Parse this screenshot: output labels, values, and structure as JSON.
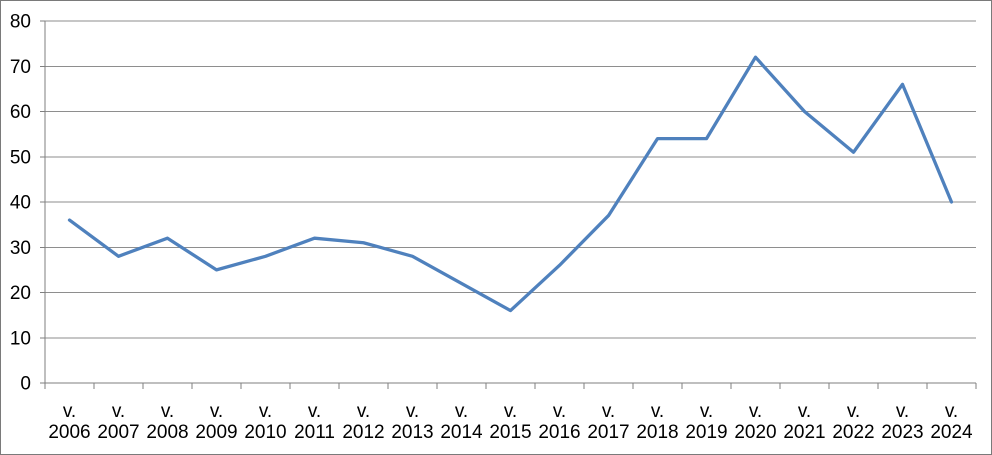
{
  "chart_data": {
    "type": "line",
    "title": "",
    "subtitle": "",
    "xlabel": "",
    "ylabel": "",
    "legend": false,
    "grid": true,
    "category_prefix": "v.",
    "categories": [
      "2006",
      "2007",
      "2008",
      "2009",
      "2010",
      "2011",
      "2012",
      "2013",
      "2014",
      "2015",
      "2016",
      "2017",
      "2018",
      "2019",
      "2020",
      "2021",
      "2022",
      "2023",
      "2024"
    ],
    "series": [
      {
        "name": "",
        "values": [
          36,
          28,
          32,
          25,
          28,
          32,
          31,
          28,
          22,
          16,
          26,
          37,
          54,
          54,
          72,
          60,
          51,
          66,
          40
        ],
        "color": "#4F81BD"
      }
    ],
    "ylim": [
      0,
      80
    ],
    "ytick_step": 10,
    "yticks": [
      0,
      10,
      20,
      30,
      40,
      50,
      60,
      70,
      80
    ],
    "colors": {
      "background": "#FFFFFF",
      "plot_background": "#FFFFFF",
      "gridline": "#8E8E8E",
      "axis": "#7F7F7F",
      "border": "#7A7A7A",
      "text": "#000000"
    }
  }
}
